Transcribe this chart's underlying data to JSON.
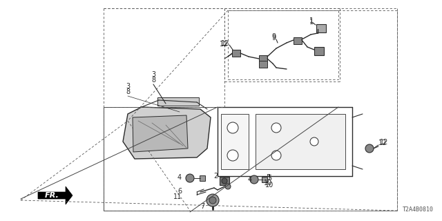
{
  "bg_color": "#ffffff",
  "line_color": "#2a2a2a",
  "part_code": "T2A4B0810",
  "fig_width": 6.4,
  "fig_height": 3.2,
  "dpi": 100
}
